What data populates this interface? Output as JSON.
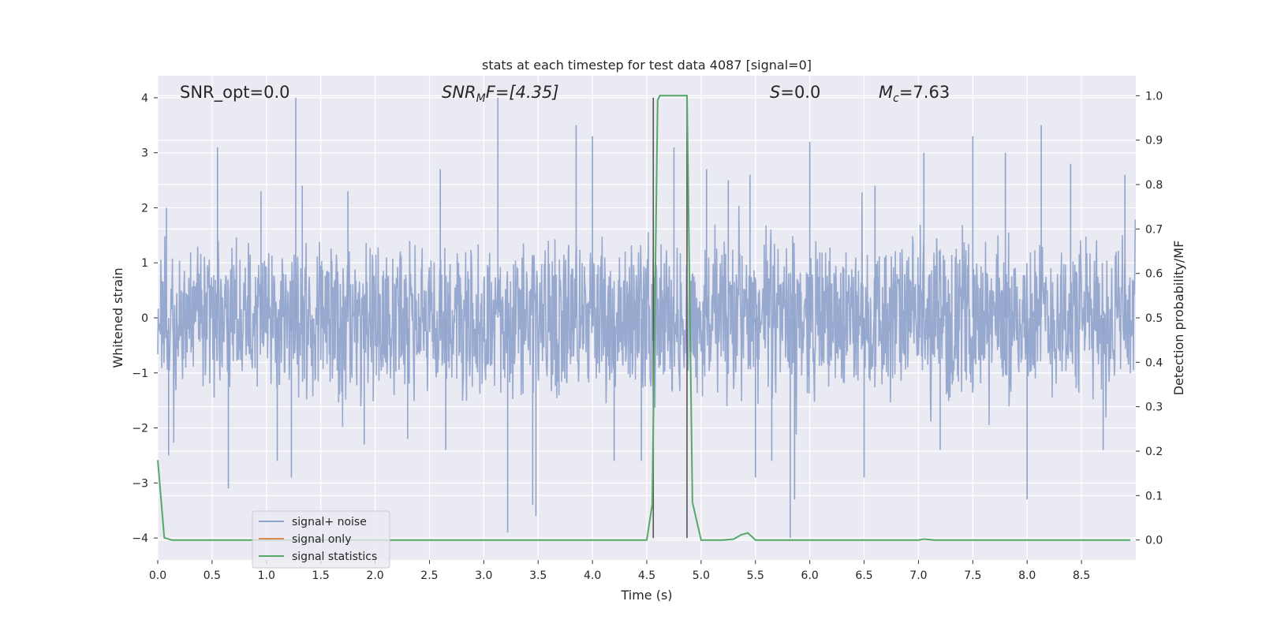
{
  "chart_data": {
    "type": "line",
    "title": "stats at each timestep for test data 4087 [signal=0]",
    "xlabel": "Time (s)",
    "ylabel": "Whitened strain",
    "y2label": "Detection probability/MF",
    "xlim": [
      0.0,
      9.0
    ],
    "ylim": [
      -4.4,
      4.4
    ],
    "y2lim": [
      -0.045,
      1.045
    ],
    "xticks": [
      "0.0",
      "0.5",
      "1.0",
      "1.5",
      "2.0",
      "2.5",
      "3.0",
      "3.5",
      "4.0",
      "4.5",
      "5.0",
      "5.5",
      "6.0",
      "6.5",
      "7.0",
      "7.5",
      "8.0",
      "8.5"
    ],
    "yticks": [
      "4",
      "3",
      "2",
      "1",
      "0",
      "−1",
      "−2",
      "−3",
      "−4"
    ],
    "y2ticks": [
      "1.0",
      "0.9",
      "0.8",
      "0.7",
      "0.6",
      "0.5",
      "0.4",
      "0.3",
      "0.2",
      "0.1",
      "0.0"
    ],
    "grid": true,
    "legend_position": "lower-left",
    "annotations": {
      "snr_opt": "SNR_opt=0.0",
      "snr_mf_base": "SNR",
      "snr_mf_sub": "M",
      "snr_mf_tail": "F=[4.35]",
      "s_label": "S",
      "s_value": "=0.0",
      "mc_base": "M",
      "mc_sub": "c",
      "mc_value": "=7.63"
    },
    "vlines_x": [
      4.56,
      4.87
    ],
    "series": [
      {
        "name": "signal+ noise",
        "color": "#8fa3cc",
        "axis": "left",
        "noise_envelope": {
          "upper_typical": 1.6,
          "lower_typical": -1.6
        },
        "peaks": [
          {
            "x": 0.08,
            "y": 2.0
          },
          {
            "x": 0.1,
            "y": -2.5
          },
          {
            "x": 0.55,
            "y": 3.1
          },
          {
            "x": 0.65,
            "y": -3.1
          },
          {
            "x": 0.95,
            "y": 2.3
          },
          {
            "x": 1.1,
            "y": -2.6
          },
          {
            "x": 1.27,
            "y": 4.0
          },
          {
            "x": 1.23,
            "y": -2.9
          },
          {
            "x": 1.33,
            "y": 2.4
          },
          {
            "x": 1.75,
            "y": 2.3
          },
          {
            "x": 1.9,
            "y": -2.3
          },
          {
            "x": 2.3,
            "y": -2.2
          },
          {
            "x": 2.6,
            "y": 2.7
          },
          {
            "x": 2.65,
            "y": -2.4
          },
          {
            "x": 3.13,
            "y": 4.0
          },
          {
            "x": 3.22,
            "y": -3.9
          },
          {
            "x": 3.45,
            "y": -3.4
          },
          {
            "x": 3.48,
            "y": -3.6
          },
          {
            "x": 3.85,
            "y": 3.5
          },
          {
            "x": 4.0,
            "y": 3.3
          },
          {
            "x": 4.2,
            "y": -2.6
          },
          {
            "x": 4.45,
            "y": -2.6
          },
          {
            "x": 4.75,
            "y": 3.1
          },
          {
            "x": 5.05,
            "y": 2.7
          },
          {
            "x": 5.25,
            "y": 2.5
          },
          {
            "x": 5.45,
            "y": 2.6
          },
          {
            "x": 5.5,
            "y": -2.9
          },
          {
            "x": 5.65,
            "y": -2.6
          },
          {
            "x": 5.82,
            "y": -4.0
          },
          {
            "x": 5.86,
            "y": -3.3
          },
          {
            "x": 6.0,
            "y": 3.2
          },
          {
            "x": 6.5,
            "y": -2.9
          },
          {
            "x": 6.6,
            "y": 2.4
          },
          {
            "x": 7.05,
            "y": 3.0
          },
          {
            "x": 7.2,
            "y": -2.4
          },
          {
            "x": 7.5,
            "y": 3.3
          },
          {
            "x": 7.8,
            "y": 3.0
          },
          {
            "x": 8.0,
            "y": -3.3
          },
          {
            "x": 8.13,
            "y": 3.5
          },
          {
            "x": 8.4,
            "y": 2.8
          },
          {
            "x": 8.7,
            "y": -2.4
          },
          {
            "x": 8.9,
            "y": 2.6
          }
        ]
      },
      {
        "name": "signal only",
        "color": "#dd8452",
        "axis": "left",
        "values": []
      },
      {
        "name": "signal statistics",
        "color": "#55a868",
        "axis": "right",
        "x": [
          0.0,
          0.06,
          0.13,
          0.2,
          0.5,
          1.0,
          1.5,
          2.0,
          2.5,
          3.0,
          3.5,
          4.0,
          4.5,
          4.55,
          4.6,
          4.62,
          4.87,
          4.92,
          5.0,
          5.1,
          5.2,
          5.3,
          5.37,
          5.43,
          5.5,
          5.6,
          6.0,
          6.5,
          7.0,
          7.05,
          7.15,
          7.5,
          8.0,
          8.5,
          8.95
        ],
        "y": [
          0.18,
          0.005,
          0.0,
          0.0,
          0.0,
          0.0,
          0.0,
          0.0,
          0.0,
          0.0,
          0.0,
          0.0,
          0.0,
          0.08,
          0.99,
          1.0,
          1.0,
          0.085,
          0.0,
          0.0,
          0.0,
          0.002,
          0.012,
          0.016,
          0.0,
          0.0,
          0.0,
          0.0,
          0.0,
          0.002,
          0.0,
          0.0,
          0.0,
          0.0,
          0.0
        ]
      }
    ]
  }
}
